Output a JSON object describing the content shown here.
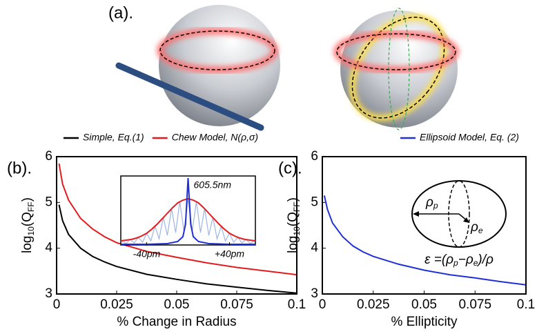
{
  "panel_a": {
    "label": "(a)."
  },
  "chart_data": [
    {
      "type": "line",
      "panel_label": "(b).",
      "xlabel": "% Change in Radius",
      "ylabel_parts": [
        "log",
        "10",
        "(Q",
        "FF",
        ")"
      ],
      "xlim": [
        0,
        0.1
      ],
      "ylim": [
        3,
        6
      ],
      "xticks": [
        0,
        0.025,
        0.05,
        0.075,
        0.1
      ],
      "yticks": [
        3,
        4,
        5,
        6
      ],
      "x": [
        0.001,
        0.0025,
        0.005,
        0.01,
        0.015,
        0.02,
        0.025,
        0.0375,
        0.05,
        0.0625,
        0.075,
        0.0875,
        0.1
      ],
      "series": [
        {
          "name": "Simple, Eq.(1)",
          "color": "#000000",
          "values": [
            4.95,
            4.6,
            4.3,
            4.0,
            3.82,
            3.7,
            3.6,
            3.43,
            3.32,
            3.22,
            3.15,
            3.08,
            3.02
          ]
        },
        {
          "name": "Chew Model, N(ρ,σ)",
          "color": "#e41a1c",
          "values": [
            5.85,
            5.4,
            5.05,
            4.65,
            4.42,
            4.25,
            4.12,
            3.93,
            3.8,
            3.68,
            3.58,
            3.5,
            3.42
          ]
        }
      ],
      "inset": {
        "xlim": [
          -65,
          65
        ],
        "ylim": [
          0,
          1
        ],
        "xticks": [
          {
            "value": -40,
            "label": "-40pm"
          },
          {
            "value": 40,
            "label": "+40pm"
          }
        ],
        "annotation": "605.5nm",
        "series": [
          {
            "color": "#9db4e8",
            "x": [
              -64,
              -60,
              -56,
              -52,
              -48,
              -44,
              -40,
              -36,
              -32,
              -28,
              -24,
              -20,
              -16,
              -12,
              -8,
              -4,
              0,
              4,
              8,
              12,
              16,
              20,
              24,
              28,
              32,
              36,
              40,
              44,
              48,
              52,
              56,
              60,
              64
            ],
            "values": [
              0.06,
              0.02,
              0.08,
              0.03,
              0.11,
              0.04,
              0.17,
              0.06,
              0.27,
              0.09,
              0.4,
              0.14,
              0.53,
              0.18,
              0.63,
              0.2,
              0.67,
              0.2,
              0.63,
              0.18,
              0.53,
              0.14,
              0.4,
              0.09,
              0.27,
              0.06,
              0.17,
              0.04,
              0.11,
              0.03,
              0.08,
              0.02,
              0.06
            ]
          },
          {
            "color": "#e41a1c",
            "x": [
              -65,
              -60,
              -55,
              -50,
              -45,
              -40,
              -35,
              -30,
              -25,
              -20,
              -15,
              -10,
              -5,
              0,
              5,
              10,
              15,
              20,
              25,
              30,
              35,
              40,
              45,
              50,
              55,
              60,
              65
            ],
            "values": [
              0.06,
              0.07,
              0.08,
              0.1,
              0.13,
              0.17,
              0.23,
              0.3,
              0.38,
              0.46,
              0.54,
              0.61,
              0.65,
              0.67,
              0.65,
              0.61,
              0.54,
              0.46,
              0.38,
              0.3,
              0.23,
              0.17,
              0.13,
              0.1,
              0.08,
              0.07,
              0.06
            ]
          },
          {
            "color": "#1f2fd6",
            "x": [
              -65,
              -40,
              -20,
              -10,
              -5,
              -2.5,
              -1,
              0,
              1,
              2.5,
              5,
              10,
              20,
              40,
              65
            ],
            "values": [
              0.01,
              0.01,
              0.02,
              0.05,
              0.12,
              0.3,
              0.7,
              0.97,
              0.7,
              0.3,
              0.12,
              0.05,
              0.02,
              0.01,
              0.01
            ]
          }
        ]
      }
    },
    {
      "type": "line",
      "panel_label": "(c).",
      "xlabel": "% Ellipticity",
      "ylabel_parts": [
        "log",
        "10",
        "(Q",
        "FF",
        ")"
      ],
      "xlim": [
        0,
        0.1
      ],
      "ylim": [
        3,
        6
      ],
      "xticks": [
        0,
        0.025,
        0.05,
        0.075,
        0.1
      ],
      "yticks": [
        3,
        4,
        5,
        6
      ],
      "x": [
        0.001,
        0.0025,
        0.005,
        0.01,
        0.015,
        0.02,
        0.025,
        0.0375,
        0.05,
        0.0625,
        0.075,
        0.0875,
        0.1
      ],
      "series": [
        {
          "name": "Ellipsoid Model, Eq. (2)",
          "color": "#1f2fd6",
          "values": [
            5.15,
            4.85,
            4.55,
            4.25,
            4.05,
            3.92,
            3.82,
            3.65,
            3.52,
            3.42,
            3.35,
            3.27,
            3.2
          ]
        }
      ],
      "diagram": {
        "rho_p": [
          "ρ",
          "p"
        ],
        "rho_e": [
          "ρ",
          "e"
        ],
        "formula": [
          "ε =(ρ",
          "p",
          "−ρ",
          "e",
          ")/ρ"
        ]
      }
    }
  ]
}
